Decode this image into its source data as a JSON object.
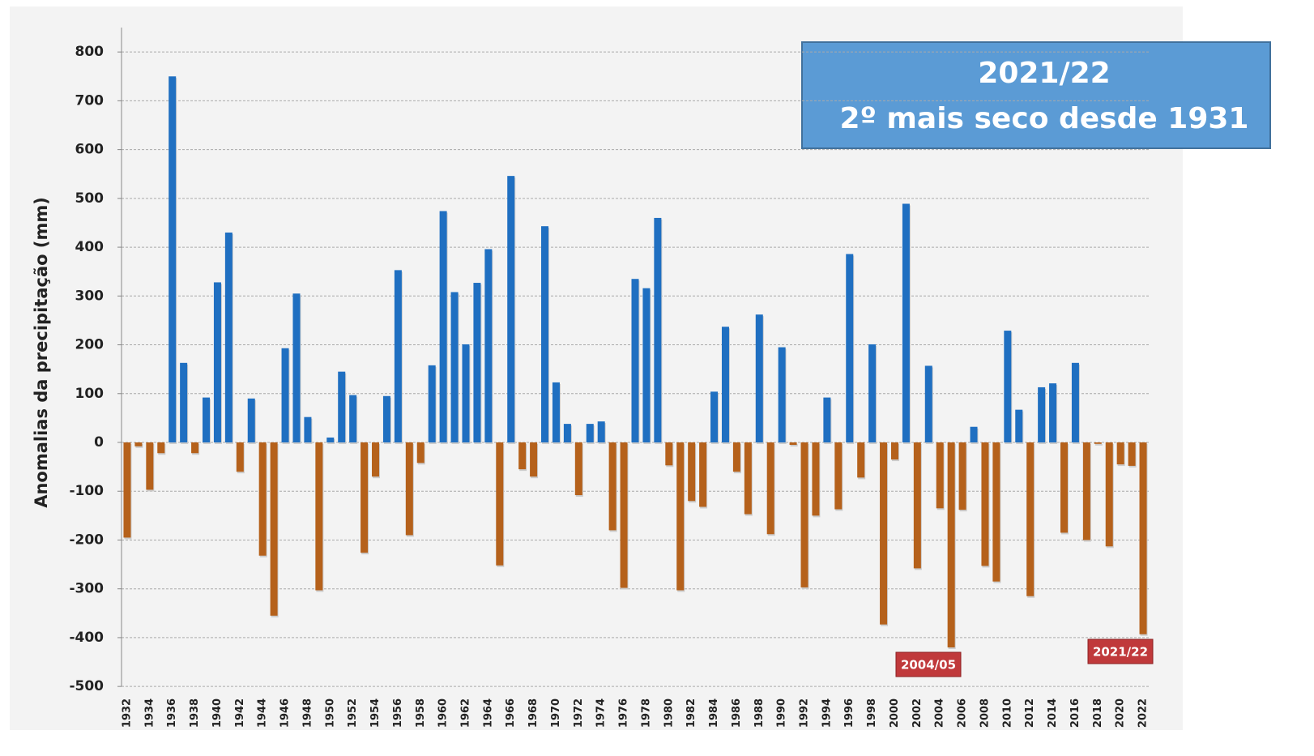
{
  "chart_data": {
    "type": "bar",
    "y_label": "Anomalias da precipitação (mm)",
    "categories": [
      "1932",
      null,
      "1934",
      null,
      "1936",
      null,
      "1938",
      null,
      "1940",
      null,
      "1942",
      null,
      "1944",
      null,
      "1946",
      null,
      "1948",
      null,
      "1950",
      null,
      "1952",
      null,
      "1954",
      null,
      "1956",
      null,
      "1958",
      null,
      "1960",
      null,
      "1962",
      null,
      "1964",
      null,
      "1966",
      null,
      "1968",
      null,
      "1970",
      null,
      "1972",
      null,
      "1974",
      null,
      "1976",
      null,
      "1978",
      null,
      "1980",
      null,
      "1982",
      null,
      "1984",
      null,
      "1986",
      null,
      "1988",
      null,
      "1990",
      null,
      "1992",
      null,
      "1994",
      null,
      "1996",
      null,
      "1998",
      null,
      "2000",
      null,
      "2002",
      null,
      "2004",
      null,
      "2006",
      null,
      "2008",
      null,
      "2010",
      null,
      "2012",
      null,
      "2014",
      null,
      "2016",
      null,
      "2018",
      null,
      "2020",
      null,
      "2022"
    ],
    "values": [
      -195,
      -8,
      -97,
      -22,
      750,
      163,
      -22,
      92,
      328,
      430,
      -60,
      90,
      -232,
      -355,
      193,
      305,
      52,
      -303,
      10,
      145,
      97,
      -226,
      -70,
      95,
      353,
      -190,
      -42,
      158,
      474,
      308,
      201,
      327,
      396,
      -252,
      546,
      -55,
      -70,
      443,
      123,
      38,
      -108,
      38,
      43,
      -180,
      -298,
      335,
      316,
      460,
      -47,
      -303,
      -120,
      -132,
      104,
      237,
      -60,
      -147,
      262,
      -188,
      195,
      -5,
      -297,
      -150,
      92,
      -137,
      386,
      -72,
      201,
      -373,
      -35,
      489,
      -258,
      157,
      -135,
      -420,
      -138,
      32,
      -253,
      -285,
      229,
      67,
      -315,
      113,
      121,
      -185,
      163,
      -200,
      -3,
      -213,
      -45,
      -48,
      -393
    ],
    "color_positive": "#1f6fc1",
    "color_negative": "#b5611b",
    "ylim": [
      -500,
      850
    ],
    "yticks": [
      -500,
      -400,
      -300,
      -200,
      -100,
      0,
      100,
      200,
      300,
      400,
      500,
      600,
      700,
      800
    ],
    "grid": true,
    "annotation_box": [
      "2021/22",
      "2º mais seco desde 1931"
    ],
    "annotations": [
      "2004/05",
      "2021/22"
    ]
  }
}
